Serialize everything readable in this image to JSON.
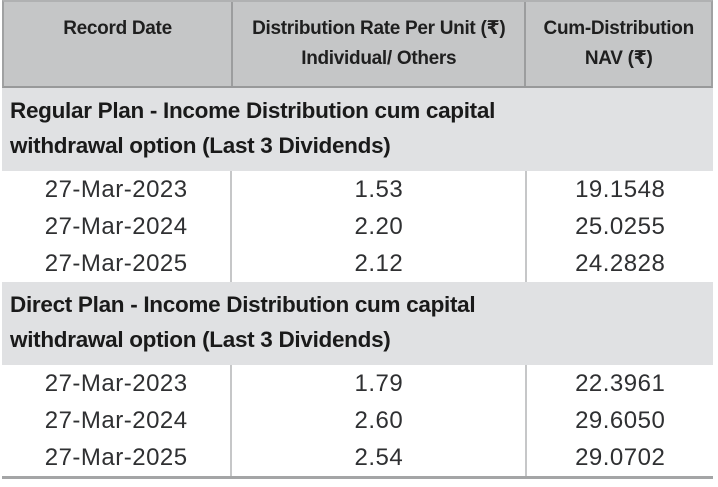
{
  "table": {
    "header": {
      "col1": "Record Date",
      "col2_line1": "Distribution Rate Per Unit (₹)",
      "col2_line2": "Individual/ Others",
      "col3_line1": "Cum-Distribution",
      "col3_line2": "NAV (₹)"
    },
    "currency_symbol": "₹",
    "sections": [
      {
        "title_line1": "Regular Plan - Income Distribution cum capital",
        "title_line2": "withdrawal option (Last 3 Dividends)",
        "rows": [
          {
            "record_date": "27-Mar-2023",
            "distribution_rate": "1.53",
            "cum_distribution_nav": "19.1548"
          },
          {
            "record_date": "27-Mar-2024",
            "distribution_rate": "2.20",
            "cum_distribution_nav": "25.0255"
          },
          {
            "record_date": "27-Mar-2025",
            "distribution_rate": "2.12",
            "cum_distribution_nav": "24.2828"
          }
        ]
      },
      {
        "title_line1": "Direct Plan - Income Distribution cum capital",
        "title_line2": "withdrawal option (Last 3 Dividends)",
        "rows": [
          {
            "record_date": "27-Mar-2023",
            "distribution_rate": "1.79",
            "cum_distribution_nav": "22.3961"
          },
          {
            "record_date": "27-Mar-2024",
            "distribution_rate": "2.60",
            "cum_distribution_nav": "29.6050"
          },
          {
            "record_date": "27-Mar-2025",
            "distribution_rate": "2.54",
            "cum_distribution_nav": "29.0702"
          }
        ]
      }
    ]
  },
  "colors": {
    "header_bg": "#c5c6c7",
    "section_bg": "#e0e1e3",
    "outer_border": "#a0a1a2",
    "header_divider": "#9c9d9e",
    "row_divider": "#c6c7c8",
    "bottom_rule": "#a4a5a6",
    "heading_text": "#1f1f1f",
    "data_text": "#2f3032"
  }
}
